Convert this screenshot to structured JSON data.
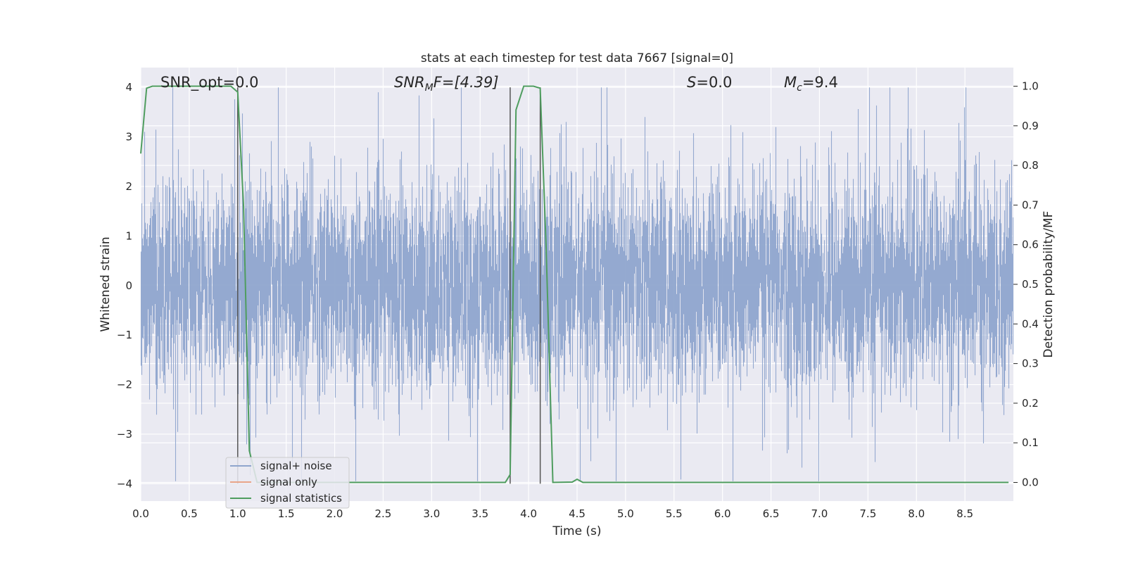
{
  "chart_data": {
    "type": "line",
    "title": "stats at each timestep for test data 7667 [signal=0]",
    "xlabel": "Time (s)",
    "ylabel": "Whitened strain",
    "ylabel_right": "Detection probability/MF",
    "xlim": [
      0.0,
      9.0
    ],
    "ylim": [
      -4.35,
      4.4
    ],
    "ylim_right": [
      -0.047,
      1.047
    ],
    "x_ticks": [
      0.0,
      0.5,
      1.0,
      1.5,
      2.0,
      2.5,
      3.0,
      3.5,
      4.0,
      4.5,
      5.0,
      5.5,
      6.0,
      6.5,
      7.0,
      7.5,
      8.0,
      8.5
    ],
    "x_tick_labels": [
      "0.0",
      "0.5",
      "1.0",
      "1.5",
      "2.0",
      "2.5",
      "3.0",
      "3.5",
      "4.0",
      "4.5",
      "5.0",
      "5.5",
      "6.0",
      "6.5",
      "7.0",
      "7.5",
      "8.0",
      "8.5"
    ],
    "y_ticks": [
      -4,
      -3,
      -2,
      -1,
      0,
      1,
      2,
      3,
      4
    ],
    "y_tick_labels": [
      "−4",
      "−3",
      "−2",
      "−1",
      "0",
      "1",
      "2",
      "3",
      "4"
    ],
    "y_ticks_right": [
      0.0,
      0.1,
      0.2,
      0.3,
      0.4,
      0.5,
      0.6,
      0.7,
      0.8,
      0.9,
      1.0
    ],
    "y_tick_labels_right": [
      "0.0",
      "0.1",
      "0.2",
      "0.3",
      "0.4",
      "0.5",
      "0.6",
      "0.7",
      "0.8",
      "0.9",
      "1.0"
    ],
    "grid": true,
    "legend_placement": "lower-left",
    "annotations": {
      "snr_opt": "SNR_opt=0.0",
      "snr_mf_base": "SNR",
      "snr_mf_sub": "M",
      "snr_mf_rest": "F=[4.39]",
      "s_base": "S",
      "s_rest": "=0.0",
      "mc_base": "M",
      "mc_sub": "c",
      "mc_rest": "=9.4"
    },
    "series": [
      {
        "name": "signal+ noise",
        "color": "#8fa5cd",
        "kind": "noise",
        "sample_rate": 2048,
        "typical_amplitude": 1.2,
        "peak_range": [
          -3.95,
          4.0
        ]
      },
      {
        "name": "signal only",
        "color": "#e9a589",
        "kind": "line",
        "x": [],
        "y": []
      },
      {
        "name": "signal statistics",
        "color": "#4f9d5f",
        "kind": "line",
        "axis": "right",
        "x": [
          0.0,
          0.06,
          0.12,
          0.25,
          0.5,
          0.75,
          0.93,
          1.0,
          1.06,
          1.12,
          1.2,
          1.5,
          2.0,
          2.5,
          3.0,
          3.5,
          3.76,
          3.81,
          3.87,
          3.95,
          4.0,
          4.05,
          4.12,
          4.18,
          4.25,
          4.45,
          4.5,
          4.56,
          5.0,
          6.0,
          7.0,
          8.0,
          8.95
        ],
        "y": [
          0.83,
          0.995,
          1.0,
          1.0,
          1.0,
          1.0,
          1.0,
          0.985,
          0.7,
          0.08,
          0.0,
          0.0,
          0.0,
          0.0,
          0.0,
          0.0,
          0.0,
          0.02,
          0.94,
          1.0,
          1.0,
          1.0,
          0.995,
          0.6,
          0.0,
          0.001,
          0.008,
          0.0,
          0.0,
          0.0,
          0.0,
          0.0,
          0.0
        ]
      }
    ],
    "vertical_markers": {
      "color": "#555555",
      "x": [
        1.0,
        3.81,
        4.12
      ],
      "y_range": [
        -4.0,
        4.0
      ]
    }
  }
}
